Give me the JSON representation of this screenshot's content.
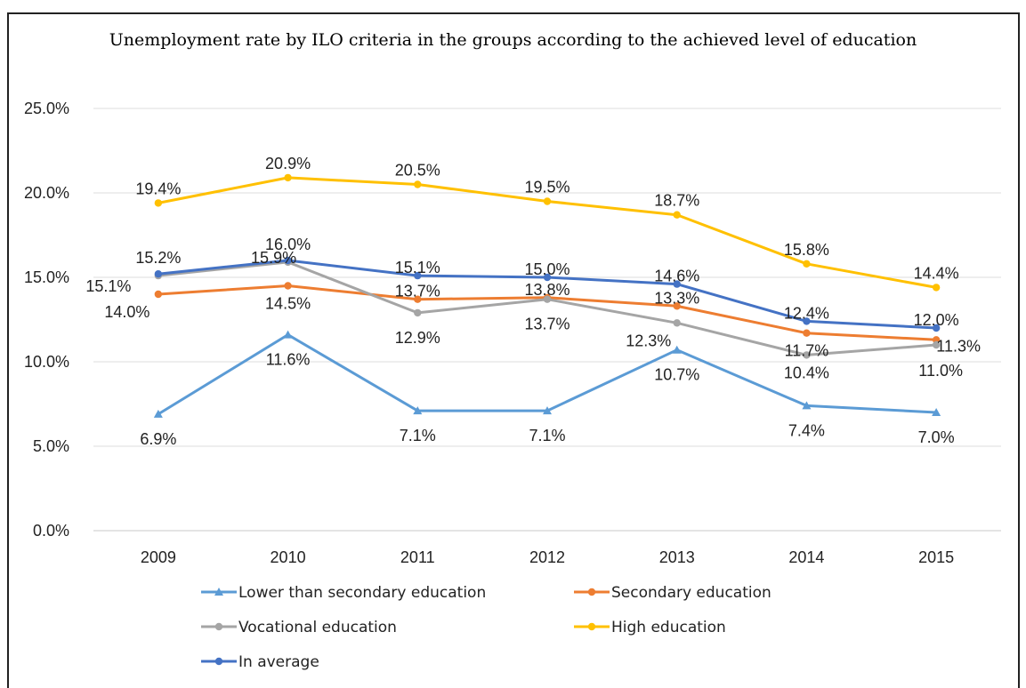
{
  "chart_data": {
    "type": "line",
    "title": "Unemployment rate by ILO criteria in the groups according to the achieved  level of education",
    "xlabel": "",
    "ylabel": "",
    "categories": [
      "2009",
      "2010",
      "2011",
      "2012",
      "2013",
      "2014",
      "2015"
    ],
    "ylim": [
      0,
      25
    ],
    "yticks": [
      "0.0%",
      "5.0%",
      "10.0%",
      "15.0%",
      "20.0%",
      "25.0%"
    ],
    "grid": true,
    "legend_position": "bottom",
    "series": [
      {
        "name": "Lower than secondary education",
        "color": "#5B9BD5",
        "marker": "triangle",
        "values": [
          6.9,
          11.6,
          7.1,
          7.1,
          10.7,
          7.4,
          7.0
        ],
        "labels": [
          "6.9%",
          "11.6%",
          "7.1%",
          "7.1%",
          "10.7%",
          "7.4%",
          "7.0%"
        ]
      },
      {
        "name": "Secondary education",
        "color": "#ED7D31",
        "marker": "circle",
        "values": [
          14.0,
          14.5,
          13.7,
          13.8,
          13.3,
          11.7,
          11.3
        ],
        "labels": [
          "14.0%",
          "14.5%",
          "13.7%",
          "13.8%",
          "13.3%",
          "11.7%",
          "11.3%"
        ]
      },
      {
        "name": "Vocational education",
        "color": "#A5A5A5",
        "marker": "circle",
        "values": [
          15.1,
          15.9,
          12.9,
          13.7,
          12.3,
          10.4,
          11.0
        ],
        "labels": [
          "15.1%",
          "15.9%",
          "12.9%",
          "13.7%",
          "12.3%",
          "10.4%",
          "11.0%"
        ]
      },
      {
        "name": "High education",
        "color": "#FFC000",
        "marker": "circle",
        "values": [
          19.4,
          20.9,
          20.5,
          19.5,
          18.7,
          15.8,
          14.4
        ],
        "labels": [
          "19.4%",
          "20.9%",
          "20.5%",
          "19.5%",
          "18.7%",
          "15.8%",
          "14.4%"
        ]
      },
      {
        "name": "In average",
        "color": "#4472C4",
        "marker": "circle",
        "values": [
          15.2,
          16.0,
          15.1,
          15.0,
          14.6,
          12.4,
          12.0
        ],
        "labels": [
          "15.2%",
          "16.0%",
          "15.1%",
          "15.0%",
          "14.6%",
          "12.4%",
          "12.0%"
        ]
      }
    ]
  }
}
